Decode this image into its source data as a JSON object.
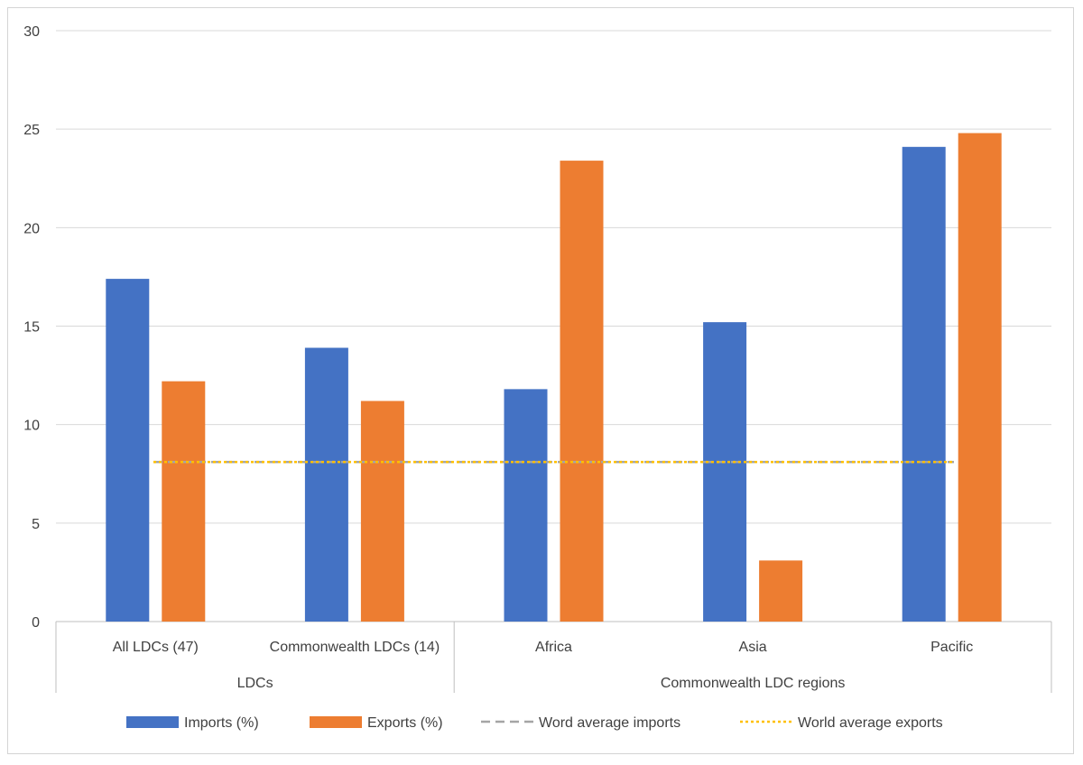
{
  "chart_data": {
    "type": "bar",
    "title": "",
    "xlabel": "",
    "ylabel": "",
    "ylim": [
      0,
      30
    ],
    "yticks": [
      "0",
      "5",
      "10",
      "15",
      "20",
      "25",
      "30"
    ],
    "categories": [
      "All LDCs (47)",
      "Commonwealth LDCs (14)",
      "Africa",
      "Asia",
      "Pacific"
    ],
    "groups": [
      {
        "label": "LDCs",
        "categories": [
          0,
          1
        ]
      },
      {
        "label": "Commonwealth LDC regions",
        "categories": [
          2,
          3,
          4
        ]
      }
    ],
    "series": [
      {
        "name": "Imports (%)",
        "kind": "bar",
        "color": "#4472c4",
        "values": [
          17.4,
          13.9,
          11.8,
          15.2,
          24.1
        ]
      },
      {
        "name": "Exports (%)",
        "kind": "bar",
        "color": "#ed7d31",
        "values": [
          12.2,
          11.2,
          23.4,
          3.1,
          24.8
        ]
      },
      {
        "name": "Word average imports",
        "kind": "line",
        "style": "dashed",
        "color": "#a5a5a5",
        "values": [
          8.1,
          8.1,
          8.1,
          8.1,
          8.1
        ]
      },
      {
        "name": "World average exports",
        "kind": "line",
        "style": "dotted",
        "color": "#ffc000",
        "values": [
          8.1,
          8.1,
          8.1,
          8.1,
          8.1
        ]
      }
    ],
    "grid": true,
    "legend_position": "bottom"
  }
}
